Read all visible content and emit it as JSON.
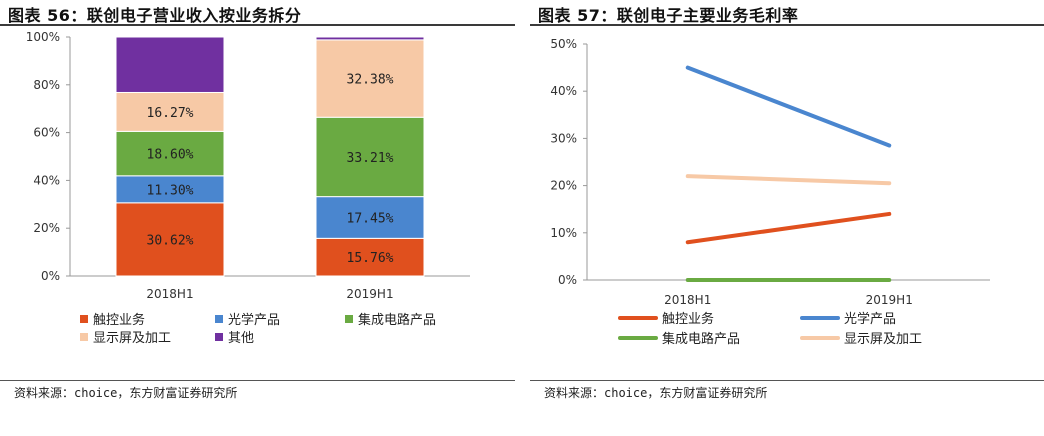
{
  "left": {
    "title": "图表 56：联创电子营业收入按业务拆分",
    "source": "资料来源：choice，东方财富证券研究所"
  },
  "right": {
    "title": "图表 57：联创电子主要业务毛利率",
    "source": "资料来源：choice，东方财富证券研究所"
  },
  "chart_data": [
    {
      "type": "bar",
      "stacked": true,
      "categories": [
        "2018H1",
        "2019H1"
      ],
      "yticks": [
        "0%",
        "20%",
        "40%",
        "60%",
        "80%",
        "100%"
      ],
      "ylim": [
        0,
        100
      ],
      "legend_position": "bottom",
      "series": [
        {
          "name": "触控业务",
          "color": "#e0501e",
          "values": [
            30.62,
            15.76
          ],
          "labels": [
            "30.62%",
            "15.76%"
          ]
        },
        {
          "name": "光学产品",
          "color": "#4a86cf",
          "values": [
            11.3,
            17.45
          ],
          "labels": [
            "11.30%",
            "17.45%"
          ]
        },
        {
          "name": "集成电路产品",
          "color": "#6aaa42",
          "values": [
            18.6,
            33.21
          ],
          "labels": [
            "18.60%",
            "33.21%"
          ]
        },
        {
          "name": "显示屏及加工",
          "color": "#f7c9a6",
          "values": [
            16.27,
            32.38
          ],
          "labels": [
            "16.27%",
            "32.38%"
          ]
        },
        {
          "name": "其他",
          "color": "#7030a0",
          "values": [
            23.21,
            1.2
          ],
          "labels": [
            "",
            ""
          ]
        }
      ]
    },
    {
      "type": "line",
      "x": [
        "2018H1",
        "2019H1"
      ],
      "yticks": [
        "0%",
        "10%",
        "20%",
        "30%",
        "40%",
        "50%"
      ],
      "ylim": [
        0,
        50
      ],
      "legend_position": "bottom",
      "series": [
        {
          "name": "触控业务",
          "color": "#e0501e",
          "values": [
            8.0,
            14.0
          ]
        },
        {
          "name": "光学产品",
          "color": "#4a86cf",
          "values": [
            45.0,
            28.5
          ]
        },
        {
          "name": "集成电路产品",
          "color": "#6aaa42",
          "values": [
            0.0,
            0.0
          ]
        },
        {
          "name": "显示屏及加工",
          "color": "#f7c9a6",
          "values": [
            22.0,
            20.5
          ]
        }
      ]
    }
  ]
}
